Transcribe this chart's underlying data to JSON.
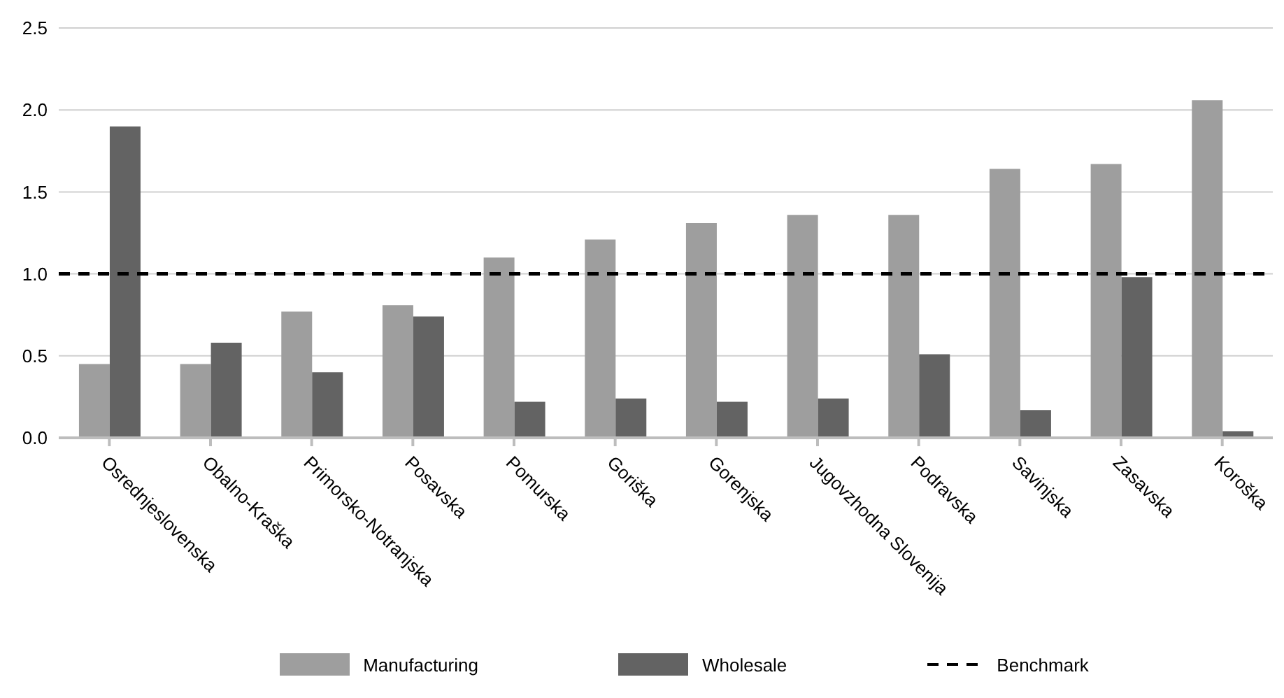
{
  "chart_data": {
    "type": "bar",
    "categories": [
      "Osrednjeslovenska",
      "Obalno-Kraška",
      "Primorsko-Notranjska",
      "Posavska",
      "Pomurska",
      "Goriška",
      "Gorenjska",
      "Jugovzhodna Slovenija",
      "Podravska",
      "Savinjska",
      "Zasavska",
      "Koroška"
    ],
    "series": [
      {
        "name": "Manufacturing",
        "color": "#9e9e9e",
        "values": [
          0.45,
          0.45,
          0.77,
          0.81,
          1.1,
          1.21,
          1.31,
          1.36,
          1.36,
          1.64,
          1.67,
          2.06
        ]
      },
      {
        "name": "Wholesale",
        "color": "#636363",
        "values": [
          1.9,
          0.58,
          0.4,
          0.74,
          0.22,
          0.24,
          0.22,
          0.24,
          0.51,
          0.17,
          0.98,
          0.04
        ]
      }
    ],
    "ref_lines": [
      {
        "axis": "y",
        "value": 1.0,
        "label": "Benchmark",
        "color": "#000000",
        "line_style": "dashed"
      }
    ],
    "ylim": [
      0,
      2.5
    ],
    "yticks": [
      {
        "value": 0,
        "label": "0.0"
      },
      {
        "value": 0.5,
        "label": "0.5"
      },
      {
        "value": 1,
        "label": "1.0"
      },
      {
        "value": 1.5,
        "label": "1.5"
      },
      {
        "value": 2,
        "label": "2.0"
      },
      {
        "value": 2.5,
        "label": "2.5"
      }
    ],
    "grid": "y",
    "legend": "bottom"
  }
}
